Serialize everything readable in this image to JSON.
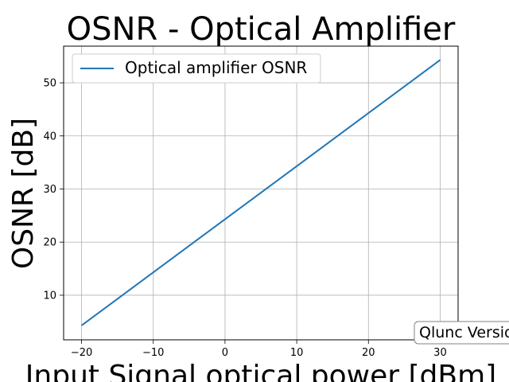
{
  "chart_data": {
    "type": "line",
    "title": "OSNR - Optical Amplifier",
    "xlabel": "Input Signal optical power [dBm]",
    "ylabel": "OSNR [dB]",
    "xlim": [
      -22.5,
      32.5
    ],
    "ylim": [
      1.6,
      56.9
    ],
    "xticks": [
      -20,
      -10,
      0,
      10,
      20,
      30
    ],
    "xtick_labels": [
      "−20",
      "−10",
      "0",
      "10",
      "20",
      "30"
    ],
    "yticks": [
      10,
      20,
      30,
      40,
      50
    ],
    "ytick_labels": [
      "10",
      "20",
      "30",
      "40",
      "50"
    ],
    "grid": true,
    "legend_position": "upper-left",
    "series": [
      {
        "name": "Optical amplifier OSNR",
        "color": "#1f77b4",
        "x": [
          -20,
          30
        ],
        "y": [
          4.3,
          54.3
        ]
      }
    ],
    "annotation": "Qlunc Version"
  }
}
